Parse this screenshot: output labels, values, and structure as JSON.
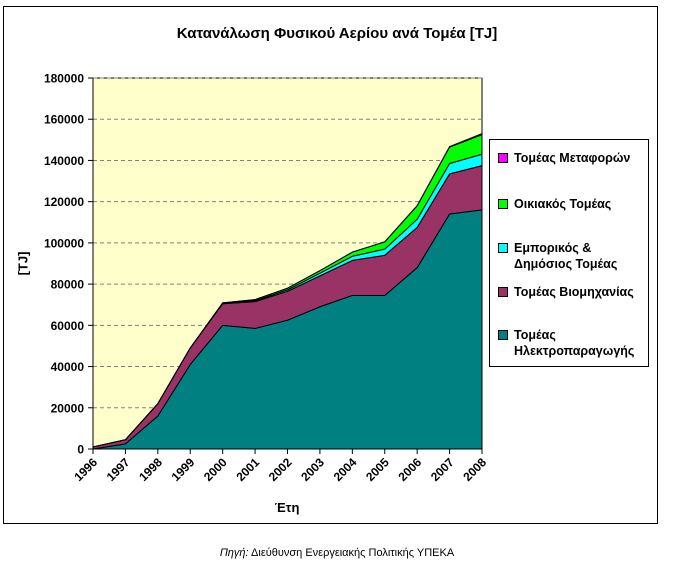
{
  "chart_data": {
    "type": "area",
    "stacked": true,
    "title": "Κατανάλωση Φυσικού Αερίου ανά Τομέα [TJ]",
    "xlabel": "Έτη",
    "ylabel": "[TJ]",
    "x": [
      "1996",
      "1997",
      "1998",
      "1999",
      "2000",
      "2001",
      "2002",
      "2003",
      "2004",
      "2005",
      "2006",
      "2007",
      "2008"
    ],
    "ylim": [
      0,
      180000
    ],
    "yticks": [
      "0",
      "20000",
      "40000",
      "60000",
      "80000",
      "100000",
      "120000",
      "140000",
      "160000",
      "180000"
    ],
    "grid": true,
    "legend_position": "right",
    "series": [
      {
        "name": "Τομέας Ηλεκτροπαραγωγής",
        "color": "#008080",
        "values": [
          0,
          2500,
          16000,
          41000,
          60000,
          58500,
          62500,
          69000,
          74500,
          74500,
          88000,
          114000,
          116000
        ]
      },
      {
        "name": "Τομέας Βιομηχανίας",
        "color": "#993366",
        "values": [
          1000,
          2000,
          6000,
          8000,
          10500,
          13000,
          14000,
          15000,
          17000,
          19500,
          19500,
          19500,
          21500
        ]
      },
      {
        "name": "Εμπορικός & Δημόσιος Τομέας",
        "color": "#00FFFF",
        "values": [
          0,
          0,
          0,
          0,
          200,
          500,
          700,
          1300,
          2000,
          3000,
          4000,
          5000,
          5500
        ]
      },
      {
        "name": "Οικιακός Τομέας",
        "color": "#00FF00",
        "values": [
          0,
          0,
          0,
          0,
          200,
          500,
          800,
          1200,
          2000,
          3500,
          6500,
          8000,
          9500
        ]
      },
      {
        "name": "Τομέας Μεταφορών",
        "color": "#FF00FF",
        "values": [
          0,
          0,
          0,
          0,
          0,
          0,
          0,
          0,
          0,
          0,
          100,
          200,
          500
        ]
      }
    ],
    "plot_background": "#FFFFCC"
  },
  "legend": [
    {
      "label": "Τομέας Μεταφορών",
      "color": "#FF00FF"
    },
    {
      "label": "Οικιακός Τομέας",
      "color": "#00FF00"
    },
    {
      "label": "Εμπορικός &\nΔημόσιος Τομέας",
      "color": "#00FFFF"
    },
    {
      "label": "Τομέας Βιομηχανίας",
      "color": "#993366"
    },
    {
      "label": "Τομέας\nΗλεκτροπαραγωγής",
      "color": "#008080"
    }
  ],
  "source": {
    "prefix": "Πηγή:",
    "text": " Διεύθυνση Ενεργειακής Πολιτικής ΥΠΕΚΑ"
  }
}
